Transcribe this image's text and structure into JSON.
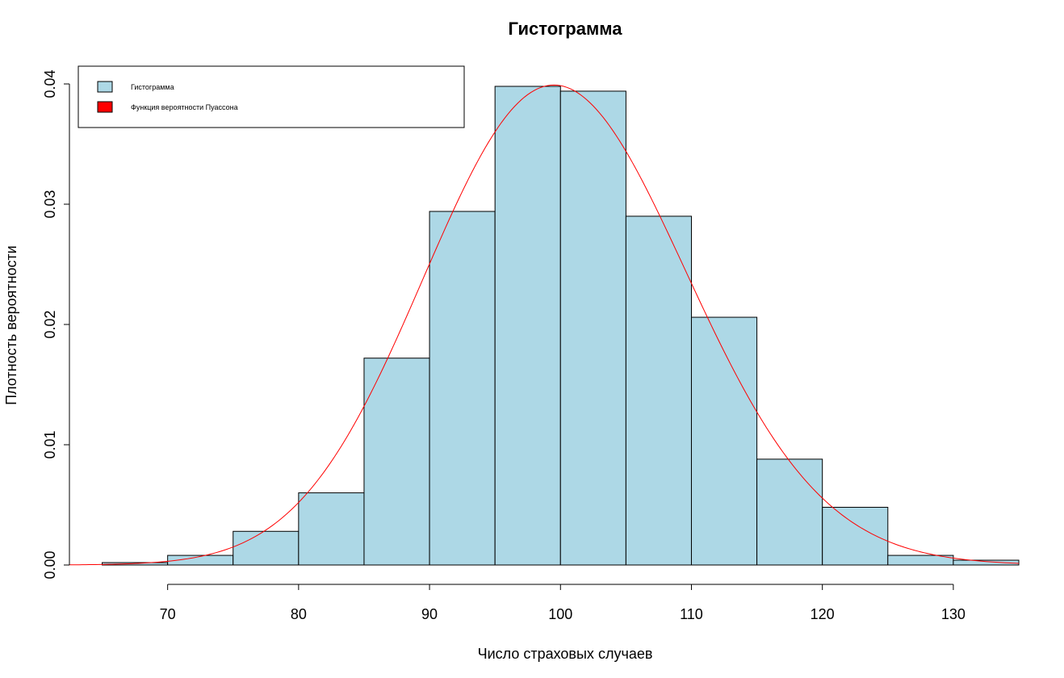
{
  "chart_data": {
    "type": "bar",
    "title": "Гистограмма",
    "xlabel": "Число страховых случаев",
    "ylabel": "Плотность вероятности",
    "xlim": [
      62.5,
      135
    ],
    "ylim": [
      0,
      0.04
    ],
    "x_ticks": [
      70,
      80,
      90,
      100,
      110,
      120,
      130
    ],
    "y_ticks": [
      "0.00",
      "0.01",
      "0.02",
      "0.03",
      "0.04"
    ],
    "bin_edges": [
      65,
      70,
      75,
      80,
      85,
      90,
      95,
      100,
      105,
      110,
      115,
      120,
      125,
      130,
      135
    ],
    "values": [
      0.0002,
      0.0008,
      0.0028,
      0.006,
      0.0172,
      0.0294,
      0.0398,
      0.0394,
      0.029,
      0.0206,
      0.0088,
      0.0048,
      0.0008,
      0.0004
    ],
    "bar_color": "#add8e6",
    "curve_color": "#ff0000",
    "curve": {
      "name": "Функция вероятности Пуассона",
      "lambda": 100,
      "x_range": [
        62.5,
        135
      ]
    },
    "legend": {
      "position": "top-left",
      "entries": [
        {
          "label": "Гистограмма",
          "color": "#add8e6"
        },
        {
          "label": "Функция вероятности Пуассона",
          "color": "#ff0000"
        }
      ]
    },
    "grid": false
  }
}
